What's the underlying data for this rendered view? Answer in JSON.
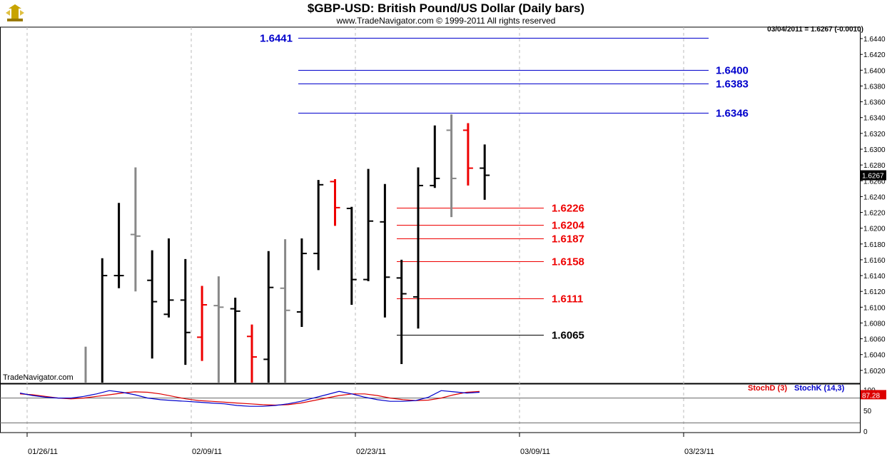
{
  "header": {
    "title": "$GBP-USD:  British Pound/US Dollar  (Daily bars)",
    "subtitle": "www.TradeNavigator.com © 1999-2011 All rights reserved",
    "last_quote": "03/04/2011 = 1.6267 (-0.0010)",
    "watermark": "TradeNavigator.com"
  },
  "colors": {
    "up": "#000000",
    "down": "#ee0000",
    "neutral": "#888888",
    "resistance": "#0000cc",
    "support": "#ee0000",
    "stochD": "#dd0000",
    "stochK": "#0000cc"
  },
  "chart_data": [
    {
      "type": "ohlc",
      "title": "$GBP-USD:  British Pound/US Dollar  (Daily bars)",
      "y_range": [
        1.6,
        1.645
      ],
      "y_ticks": [
        "1.6440",
        "1.6420",
        "1.6400",
        "1.6380",
        "1.6360",
        "1.6340",
        "1.6320",
        "1.6300",
        "1.6280",
        "1.6260",
        "1.6240",
        "1.6220",
        "1.6200",
        "1.6180",
        "1.6160",
        "1.6140",
        "1.6120",
        "1.6100",
        "1.6080",
        "1.6060",
        "1.6040",
        "1.6020"
      ],
      "x_ticks": [
        "01/26/11",
        "02/09/11",
        "02/23/11",
        "03/09/11",
        "03/23/11"
      ],
      "last_price_label": "1.6267",
      "bars": [
        {
          "idx": 0,
          "h": 1.605,
          "l": 1.6,
          "o": null,
          "c": null,
          "color": "neutral"
        },
        {
          "idx": 1,
          "h": 1.6162,
          "l": 1.6,
          "o": null,
          "c": 1.614,
          "color": "up"
        },
        {
          "idx": 2,
          "h": 1.6232,
          "l": 1.6124,
          "o": 1.614,
          "c": 1.614,
          "color": "up"
        },
        {
          "idx": 3,
          "h": 1.6277,
          "l": 1.612,
          "o": 1.6192,
          "c": 1.619,
          "color": "neutral"
        },
        {
          "idx": 4,
          "h": 1.6172,
          "l": 1.6035,
          "o": 1.6134,
          "c": 1.6107,
          "color": "up"
        },
        {
          "idx": 5,
          "h": 1.6187,
          "l": 1.6087,
          "o": 1.6091,
          "c": 1.6109,
          "color": "up"
        },
        {
          "idx": 6,
          "h": 1.6161,
          "l": 1.6027,
          "o": 1.6109,
          "c": 1.6068,
          "color": "up"
        },
        {
          "idx": 7,
          "h": 1.6127,
          "l": 1.6032,
          "o": 1.6062,
          "c": 1.6103,
          "color": "down"
        },
        {
          "idx": 8,
          "h": 1.6139,
          "l": 1.6,
          "o": 1.6102,
          "c": 1.61,
          "color": "neutral"
        },
        {
          "idx": 9,
          "h": 1.6112,
          "l": 1.6,
          "o": 1.6098,
          "c": 1.6095,
          "color": "up"
        },
        {
          "idx": 10,
          "h": 1.6078,
          "l": 1.6,
          "o": 1.6063,
          "c": 1.6037,
          "color": "down"
        },
        {
          "idx": 11,
          "h": 1.6171,
          "l": 1.6,
          "o": 1.6034,
          "c": 1.6125,
          "color": "up"
        },
        {
          "idx": 12,
          "h": 1.6186,
          "l": 1.6,
          "o": 1.6124,
          "c": 1.6096,
          "color": "neutral"
        },
        {
          "idx": 13,
          "h": 1.6187,
          "l": 1.6075,
          "o": 1.6094,
          "c": 1.6168,
          "color": "up"
        },
        {
          "idx": 14,
          "h": 1.6261,
          "l": 1.6147,
          "o": 1.6168,
          "c": 1.6255,
          "color": "up"
        },
        {
          "idx": 15,
          "h": 1.6262,
          "l": 1.6203,
          "o": 1.6259,
          "c": 1.6226,
          "color": "down"
        },
        {
          "idx": 16,
          "h": 1.6227,
          "l": 1.6103,
          "o": 1.6225,
          "c": 1.6135,
          "color": "up"
        },
        {
          "idx": 17,
          "h": 1.6275,
          "l": 1.6133,
          "o": 1.6135,
          "c": 1.6209,
          "color": "up"
        },
        {
          "idx": 18,
          "h": 1.6256,
          "l": 1.6087,
          "o": 1.6208,
          "c": 1.6138,
          "color": "up"
        },
        {
          "idx": 19,
          "h": 1.616,
          "l": 1.6028,
          "o": 1.6137,
          "c": 1.6117,
          "color": "up"
        },
        {
          "idx": 20,
          "h": 1.6277,
          "l": 1.6073,
          "o": 1.6113,
          "c": 1.6254,
          "color": "up"
        },
        {
          "idx": 21,
          "h": 1.633,
          "l": 1.6251,
          "o": 1.6254,
          "c": 1.6263,
          "color": "up"
        },
        {
          "idx": 22,
          "h": 1.6344,
          "l": 1.6214,
          "o": 1.6324,
          "c": 1.6263,
          "color": "neutral"
        },
        {
          "idx": 23,
          "h": 1.6333,
          "l": 1.6254,
          "o": 1.6324,
          "c": 1.6276,
          "color": "down"
        },
        {
          "idx": 24,
          "h": 1.6306,
          "l": 1.6236,
          "o": 1.6276,
          "c": 1.6267,
          "color": "up"
        }
      ],
      "levels": [
        {
          "label": "1.6441",
          "value": 1.6441,
          "kind": "resistance",
          "label_side": "left"
        },
        {
          "label": "1.6400",
          "value": 1.64,
          "kind": "resistance",
          "label_side": "right"
        },
        {
          "label": "1.6383",
          "value": 1.6383,
          "kind": "resistance",
          "label_side": "right"
        },
        {
          "label": "1.6346",
          "value": 1.6346,
          "kind": "resistance",
          "label_side": "right"
        },
        {
          "label": "1.6226",
          "value": 1.6226,
          "kind": "support",
          "label_side": "right"
        },
        {
          "label": "1.6204",
          "value": 1.6204,
          "kind": "support",
          "label_side": "right"
        },
        {
          "label": "1.6187",
          "value": 1.6187,
          "kind": "support",
          "label_side": "right"
        },
        {
          "label": "1.6158",
          "value": 1.6158,
          "kind": "support",
          "label_side": "right"
        },
        {
          "label": "1.6111",
          "value": 1.6111,
          "kind": "support",
          "label_side": "right"
        },
        {
          "label": "1.6065",
          "value": 1.6065,
          "kind": "base",
          "label_side": "right"
        }
      ]
    },
    {
      "type": "line",
      "y_range": [
        0,
        100
      ],
      "y_ticks": [
        "100",
        "50",
        "0"
      ],
      "last_value_label": "87.28",
      "series": [
        {
          "name": "StochD (3)",
          "values": [
            90,
            88,
            84,
            80,
            78,
            80,
            84,
            88,
            92,
            95,
            94,
            90,
            84,
            78,
            74,
            72,
            70,
            68,
            66,
            64,
            63,
            64,
            68,
            74,
            80,
            86,
            90,
            90,
            86,
            80,
            76,
            74,
            75,
            80,
            88,
            94,
            96
          ]
        },
        {
          "name": "StochK (14,3)",
          "values": [
            92,
            86,
            82,
            80,
            80,
            84,
            90,
            98,
            94,
            88,
            80,
            76,
            74,
            72,
            70,
            68,
            66,
            62,
            60,
            60,
            62,
            66,
            72,
            80,
            88,
            96,
            90,
            82,
            76,
            72,
            72,
            74,
            82,
            98,
            95,
            92,
            94
          ]
        }
      ]
    }
  ]
}
